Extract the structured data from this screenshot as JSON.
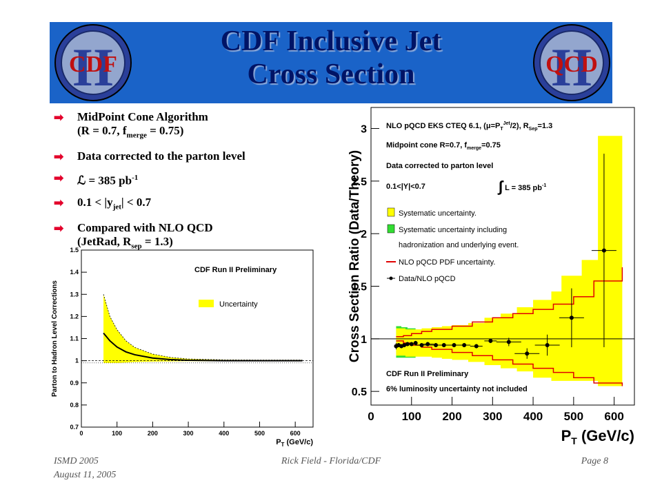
{
  "slide": {
    "title_line1": "CDF Inclusive Jet",
    "title_line2": "Cross Section",
    "logo_left_text": "CDF",
    "logo_right_text": "QCD",
    "logo_numeral": "II",
    "bullets": [
      {
        "text": "MidPoint Cone Algorithm",
        "line2_a": "(R = 0.7, f",
        "line2_sub": "merge",
        "line2_b": " = 0.75)"
      },
      {
        "text": "Data corrected to the parton level"
      },
      {
        "a": "ℒ = 385 pb",
        "sup": "-1"
      },
      {
        "a": "0.1 < |y",
        "sub": "jet",
        "b": "| < 0.7"
      },
      {
        "text": "Compared with NLO QCD",
        "line2_a": "(JetRad, R",
        "line2_sub": "sep",
        "line2_b": " = 1.3)"
      }
    ],
    "footer": {
      "left1": "ISMD 2005",
      "left2": "August 11, 2005",
      "center": "Rick Field - Florida/CDF",
      "right": "Page 8"
    }
  },
  "colors": {
    "banner": "#1a63c8",
    "title": "#001466",
    "bullet_arrow": "#e3002b",
    "syst_band": "#ffff00",
    "had_band": "#33dd33",
    "pdf_line": "#e00000"
  },
  "chart_data": [
    {
      "type": "line",
      "title": "CDF Run II Preliminary",
      "xlabel": "P_T (GeV/c)",
      "ylabel": "Parton to Hadron Level Corrections",
      "xlim": [
        0,
        650
      ],
      "ylim": [
        0.7,
        1.5
      ],
      "xticks": [
        0,
        100,
        200,
        300,
        400,
        500,
        600
      ],
      "yticks": [
        0.7,
        0.8,
        0.9,
        1,
        1.1,
        1.2,
        1.3,
        1.4,
        1.5
      ],
      "legend": [
        "Uncertainty"
      ],
      "series": [
        {
          "name": "central",
          "x": [
            62,
            80,
            100,
            125,
            150,
            200,
            250,
            300,
            400,
            500,
            620
          ],
          "y": [
            1.125,
            1.09,
            1.062,
            1.04,
            1.027,
            1.012,
            1.005,
            1.002,
            1.0,
            1.0,
            1.0
          ]
        },
        {
          "name": "Uncertainty",
          "x": [
            62,
            80,
            100,
            125,
            150,
            200,
            250,
            300,
            400,
            500,
            620
          ],
          "upper": [
            1.3,
            1.2,
            1.14,
            1.09,
            1.06,
            1.03,
            1.015,
            1.008,
            1.004,
            1.003,
            1.003
          ],
          "lower": [
            0.99,
            0.99,
            0.99,
            0.992,
            0.994,
            0.996,
            0.997,
            0.998,
            0.998,
            0.999,
            0.999
          ]
        }
      ]
    },
    {
      "type": "scatter",
      "title": "",
      "xlabel": "P_T (GeV/c)",
      "ylabel": "Cross Section Ratio (Data/Theory)",
      "xlim": [
        0,
        650
      ],
      "ylim": [
        0.37,
        3.2
      ],
      "xticks": [
        0,
        100,
        200,
        300,
        400,
        500,
        600
      ],
      "yticks": [
        0.5,
        1,
        1.5,
        2,
        2.5,
        3
      ],
      "annotations": [
        "NLO pQCD EKS CTEQ 6.1, (μ=P_T^Jet/2), R_Sep=1.3",
        "Midpoint cone R=0.7, f_merge=0.75",
        "Data corrected to parton level",
        "0.1<|Y|<0.7",
        "∫ L = 385 pb^-1",
        "CDF Run II Preliminary",
        "6% luminosity  uncertainty not included"
      ],
      "legend": [
        "Systematic uncertainty.",
        "Systematic uncertainty including",
        "hadronization and underlying event.",
        "NLO pQCD PDF uncertainty.",
        "Data/NLO pQCD"
      ],
      "series": [
        {
          "name": "Data/NLO pQCD",
          "x": [
            62,
            68,
            75,
            82,
            90,
            100,
            110,
            125,
            140,
            160,
            180,
            205,
            230,
            260,
            295,
            340,
            385,
            435,
            495,
            575
          ],
          "y": [
            0.93,
            0.94,
            0.93,
            0.94,
            0.95,
            0.95,
            0.96,
            0.94,
            0.95,
            0.94,
            0.94,
            0.94,
            0.94,
            0.93,
            0.98,
            0.97,
            0.86,
            0.94,
            1.2,
            1.84
          ],
          "yerr": [
            0.03,
            0.02,
            0.02,
            0.02,
            0.02,
            0.02,
            0.02,
            0.02,
            0.02,
            0.02,
            0.02,
            0.02,
            0.02,
            0.02,
            0.02,
            0.04,
            0.05,
            0.1,
            0.28,
            0.92
          ]
        },
        {
          "name": "Systematic uncertainty.",
          "x": [
            62,
            85,
            100,
            125,
            150,
            175,
            200,
            240,
            280,
            320,
            360,
            400,
            445,
            470,
            520,
            560,
            620
          ],
          "upper": [
            1.1,
            1.09,
            1.09,
            1.1,
            1.11,
            1.12,
            1.13,
            1.15,
            1.2,
            1.24,
            1.3,
            1.37,
            1.45,
            1.6,
            1.75,
            2.93,
            2.93
          ],
          "lower": [
            0.84,
            0.83,
            0.83,
            0.83,
            0.82,
            0.81,
            0.8,
            0.78,
            0.75,
            0.72,
            0.69,
            0.63,
            0.6,
            0.6,
            0.6,
            0.55,
            0.55
          ]
        },
        {
          "name": "NLO pQCD PDF uncertainty.",
          "x": [
            62,
            80,
            100,
            125,
            150,
            200,
            250,
            300,
            350,
            400,
            450,
            500,
            550,
            620
          ],
          "upper": [
            1.02,
            1.03,
            1.05,
            1.07,
            1.09,
            1.12,
            1.16,
            1.2,
            1.24,
            1.28,
            1.33,
            1.4,
            1.55,
            1.68
          ],
          "lower": [
            0.98,
            0.96,
            0.94,
            0.92,
            0.9,
            0.87,
            0.84,
            0.8,
            0.76,
            0.72,
            0.68,
            0.63,
            0.58,
            0.55
          ]
        }
      ]
    }
  ]
}
